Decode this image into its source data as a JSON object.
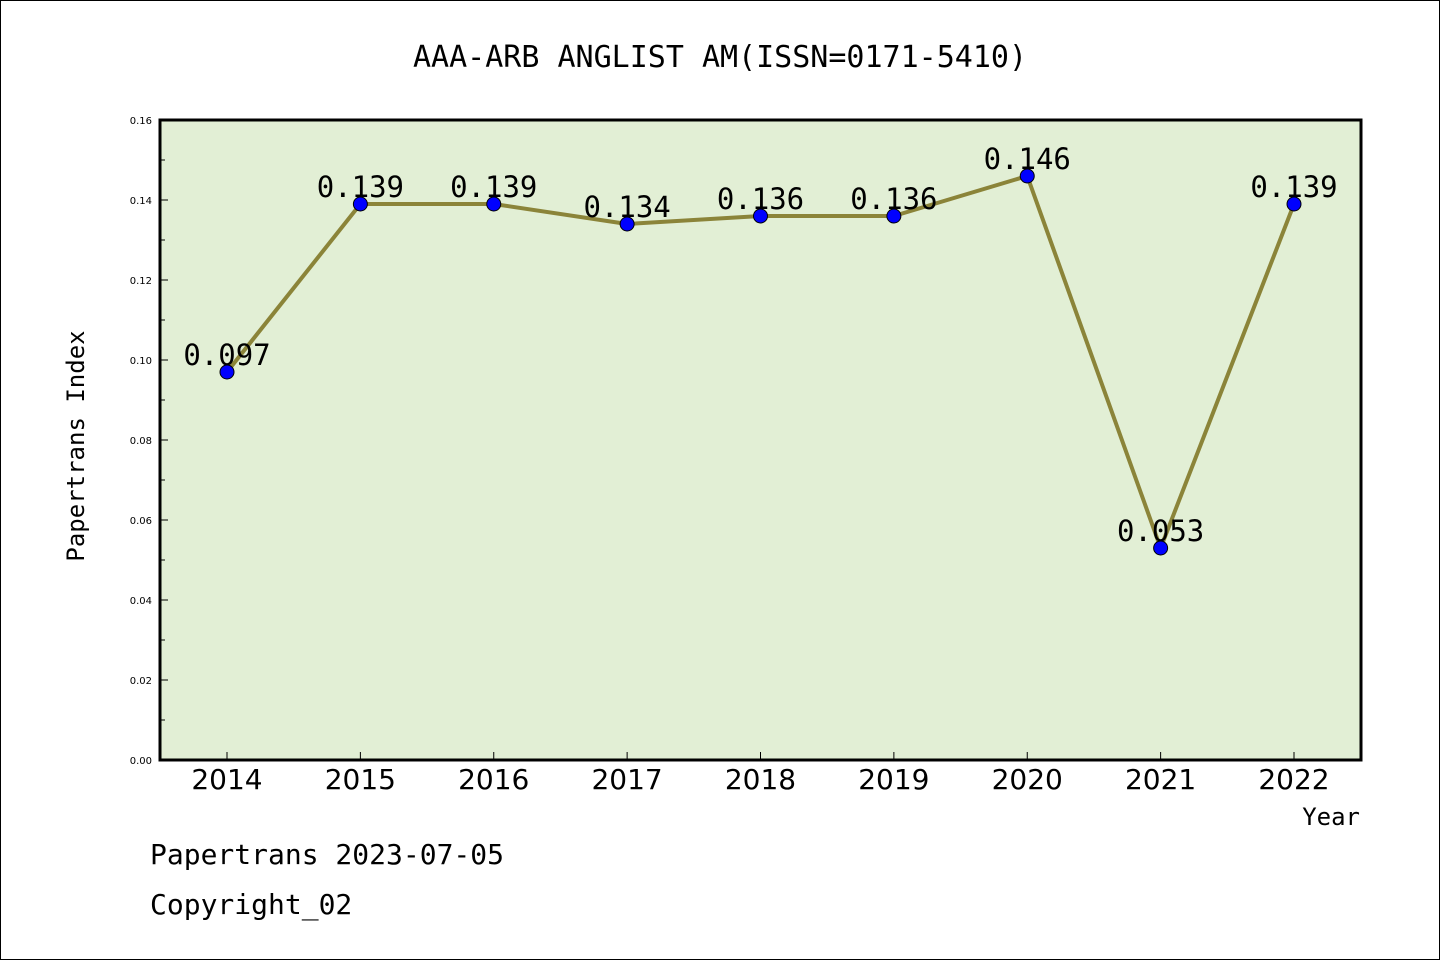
{
  "chart_data": {
    "type": "line",
    "title": "AAA-ARB ANGLIST AM(ISSN=0171-5410)",
    "xlabel": "Year",
    "ylabel": "Papertrans Index",
    "categories": [
      "2014",
      "2015",
      "2016",
      "2017",
      "2018",
      "2019",
      "2020",
      "2021",
      "2022"
    ],
    "series": [
      {
        "values": [
          0.097,
          0.139,
          0.139,
          0.134,
          0.136,
          0.136,
          0.146,
          0.053,
          0.139
        ],
        "data_labels": [
          "0.097",
          "0.139",
          "0.139",
          "0.134",
          "0.136",
          "0.136",
          "0.146",
          "0.053",
          "0.139"
        ],
        "line_color": "#8b8439",
        "marker_color": "#0000ff"
      }
    ],
    "ylim": [
      0.0,
      0.16
    ],
    "yticks": [
      "0.00",
      "0.02",
      "0.04",
      "0.06",
      "0.08",
      "0.10",
      "0.12",
      "0.14",
      "0.16"
    ],
    "grid": false,
    "plot_background": "#e2efd5"
  },
  "footer": {
    "line1": "Papertrans 2023-07-05",
    "line2": "Copyright_02"
  }
}
